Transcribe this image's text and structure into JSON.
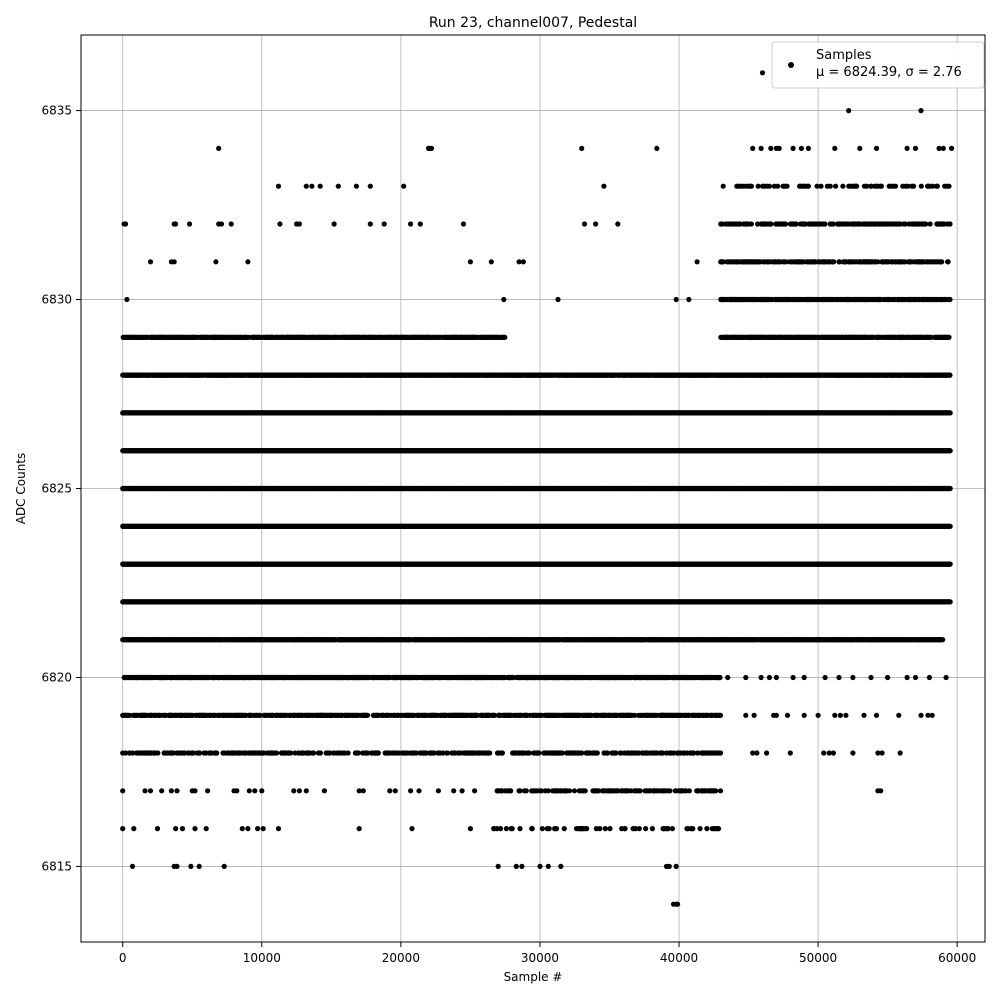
{
  "chart_data": {
    "type": "scatter",
    "title": "Run 23, channel007, Pedestal",
    "xlabel": "Sample #",
    "ylabel": "ADC Counts",
    "xlim": [
      -3000,
      62000
    ],
    "ylim": [
      6813,
      6837
    ],
    "xticks": [
      0,
      10000,
      20000,
      30000,
      40000,
      50000,
      60000
    ],
    "xtick_labels": [
      "0",
      "10000",
      "20000",
      "30000",
      "40000",
      "50000",
      "60000"
    ],
    "yticks": [
      6815,
      6820,
      6825,
      6830,
      6835
    ],
    "ytick_labels": [
      "6815",
      "6820",
      "6825",
      "6830",
      "6835"
    ],
    "grid": true,
    "legend": {
      "placement": "top-right",
      "entries": [
        {
          "marker": "dot",
          "line1": "Samples",
          "line2": "μ = 6824.39, σ = 2.76"
        }
      ]
    },
    "marker_color": "#000000",
    "series": [
      {
        "name": "Samples",
        "x_range": [
          0,
          59500
        ],
        "levels": [
          {
            "y": 6822,
            "ranges": [
              [
                0,
                59500
              ]
            ],
            "density": 1.0
          },
          {
            "y": 6823,
            "ranges": [
              [
                0,
                59500
              ]
            ],
            "density": 1.0
          },
          {
            "y": 6824,
            "ranges": [
              [
                0,
                59500
              ]
            ],
            "density": 1.0
          },
          {
            "y": 6825,
            "ranges": [
              [
                0,
                59500
              ]
            ],
            "density": 1.0
          },
          {
            "y": 6826,
            "ranges": [
              [
                0,
                59500
              ]
            ],
            "density": 1.0
          },
          {
            "y": 6827,
            "ranges": [
              [
                0,
                59500
              ]
            ],
            "density": 1.0
          },
          {
            "y": 6821,
            "ranges": [
              [
                0,
                43000
              ],
              [
                43000,
                59000
              ]
            ],
            "density": 0.9
          },
          {
            "y": 6828,
            "ranges": [
              [
                0,
                43000
              ],
              [
                43000,
                59500
              ]
            ],
            "density": 0.85
          },
          {
            "y": 6820,
            "ranges": [
              [
                0,
                43000
              ]
            ],
            "density": 0.7
          },
          {
            "y": 6829,
            "ranges": [
              [
                0,
                27500
              ],
              [
                43000,
                59500
              ]
            ],
            "density": 0.7
          },
          {
            "y": 6819,
            "ranges": [
              [
                0,
                43000
              ]
            ],
            "density": 0.5
          },
          {
            "y": 6830,
            "ranges": [
              [
                43000,
                59500
              ]
            ],
            "density": 0.6
          },
          {
            "y": 6818,
            "ranges": [
              [
                0,
                43000
              ]
            ],
            "density": 0.3
          },
          {
            "y": 6831,
            "ranges": [
              [
                43000,
                59500
              ]
            ],
            "density": 0.4
          },
          {
            "y": 6832,
            "ranges": [
              [
                43000,
                59500
              ]
            ],
            "density": 0.35
          },
          {
            "y": 6817,
            "ranges": [
              [
                26500,
                43000
              ]
            ],
            "density": 0.25
          },
          {
            "y": 6816,
            "ranges": [
              [
                26500,
                43000
              ]
            ],
            "density": 0.12
          },
          {
            "y": 6833,
            "ranges": [
              [
                43000,
                59500
              ]
            ],
            "density": 0.15
          }
        ],
        "points": [
          [
            100,
            6832
          ],
          [
            200,
            6832
          ],
          [
            300,
            6830
          ],
          [
            2000,
            6831
          ],
          [
            3500,
            6831
          ],
          [
            3700,
            6831
          ],
          [
            3700,
            6832
          ],
          [
            3800,
            6832
          ],
          [
            4800,
            6832
          ],
          [
            6700,
            6831
          ],
          [
            6900,
            6832
          ],
          [
            7100,
            6832
          ],
          [
            7800,
            6832
          ],
          [
            9000,
            6831
          ],
          [
            11300,
            6832
          ],
          [
            11200,
            6833
          ],
          [
            12500,
            6832
          ],
          [
            12700,
            6832
          ],
          [
            13200,
            6833
          ],
          [
            13600,
            6833
          ],
          [
            14200,
            6833
          ],
          [
            15200,
            6832
          ],
          [
            15500,
            6833
          ],
          [
            16800,
            6833
          ],
          [
            17800,
            6833
          ],
          [
            17800,
            6832
          ],
          [
            18800,
            6832
          ],
          [
            20200,
            6833
          ],
          [
            20700,
            6832
          ],
          [
            21400,
            6832
          ],
          [
            22000,
            6834
          ],
          [
            22200,
            6834
          ],
          [
            24500,
            6832
          ],
          [
            25000,
            6831
          ],
          [
            26500,
            6831
          ],
          [
            27400,
            6830
          ],
          [
            28500,
            6831
          ],
          [
            28800,
            6831
          ],
          [
            31300,
            6830
          ],
          [
            33000,
            6834
          ],
          [
            33200,
            6832
          ],
          [
            34000,
            6832
          ],
          [
            34600,
            6833
          ],
          [
            35600,
            6832
          ],
          [
            38400,
            6834
          ],
          [
            39800,
            6830
          ],
          [
            40700,
            6830
          ],
          [
            41300,
            6831
          ],
          [
            43000,
            6831
          ],
          [
            6900,
            6834
          ],
          [
            22000,
            6834
          ],
          [
            46000,
            6836
          ],
          [
            52200,
            6835
          ],
          [
            57400,
            6835
          ],
          [
            45300,
            6834
          ],
          [
            45900,
            6834
          ],
          [
            46600,
            6834
          ],
          [
            47000,
            6834
          ],
          [
            47200,
            6834
          ],
          [
            48200,
            6834
          ],
          [
            48800,
            6834
          ],
          [
            49300,
            6834
          ],
          [
            51200,
            6834
          ],
          [
            53000,
            6834
          ],
          [
            54200,
            6834
          ],
          [
            56400,
            6834
          ],
          [
            57000,
            6834
          ],
          [
            58700,
            6834
          ],
          [
            59000,
            6834
          ],
          [
            59600,
            6834
          ],
          [
            0,
            6817
          ],
          [
            1600,
            6817
          ],
          [
            2000,
            6817
          ],
          [
            2800,
            6817
          ],
          [
            3500,
            6817
          ],
          [
            3900,
            6817
          ],
          [
            5000,
            6817
          ],
          [
            5200,
            6817
          ],
          [
            6100,
            6817
          ],
          [
            8000,
            6817
          ],
          [
            8200,
            6817
          ],
          [
            9100,
            6817
          ],
          [
            9500,
            6817
          ],
          [
            10000,
            6817
          ],
          [
            12300,
            6817
          ],
          [
            12700,
            6817
          ],
          [
            13200,
            6817
          ],
          [
            14500,
            6817
          ],
          [
            17000,
            6817
          ],
          [
            17300,
            6817
          ],
          [
            19200,
            6817
          ],
          [
            19600,
            6817
          ],
          [
            20700,
            6817
          ],
          [
            21300,
            6817
          ],
          [
            22700,
            6817
          ],
          [
            23800,
            6817
          ],
          [
            24400,
            6817
          ],
          [
            25300,
            6817
          ],
          [
            0,
            6816
          ],
          [
            800,
            6816
          ],
          [
            2500,
            6816
          ],
          [
            3800,
            6816
          ],
          [
            4300,
            6816
          ],
          [
            5200,
            6816
          ],
          [
            6000,
            6816
          ],
          [
            8600,
            6816
          ],
          [
            9000,
            6816
          ],
          [
            9700,
            6816
          ],
          [
            10100,
            6816
          ],
          [
            11200,
            6816
          ],
          [
            17000,
            6816
          ],
          [
            20800,
            6816
          ],
          [
            25000,
            6816
          ],
          [
            33000,
            6816
          ],
          [
            34700,
            6816
          ],
          [
            36100,
            6816
          ],
          [
            36700,
            6816
          ],
          [
            700,
            6815
          ],
          [
            3700,
            6815
          ],
          [
            3900,
            6815
          ],
          [
            4900,
            6815
          ],
          [
            5500,
            6815
          ],
          [
            7300,
            6815
          ],
          [
            27000,
            6815
          ],
          [
            28300,
            6815
          ],
          [
            28700,
            6815
          ],
          [
            30000,
            6815
          ],
          [
            30600,
            6815
          ],
          [
            31500,
            6815
          ],
          [
            39100,
            6815
          ],
          [
            39300,
            6815
          ],
          [
            39800,
            6815
          ],
          [
            39600,
            6814
          ],
          [
            39800,
            6814
          ],
          [
            39900,
            6814
          ],
          [
            45300,
            6818
          ],
          [
            45600,
            6818
          ],
          [
            46300,
            6818
          ],
          [
            48000,
            6818
          ],
          [
            50400,
            6818
          ],
          [
            50800,
            6818
          ],
          [
            51100,
            6818
          ],
          [
            52500,
            6818
          ],
          [
            54300,
            6818
          ],
          [
            54600,
            6818
          ],
          [
            55900,
            6818
          ],
          [
            54300,
            6817
          ],
          [
            54500,
            6817
          ],
          [
            44800,
            6819
          ],
          [
            45400,
            6819
          ],
          [
            46800,
            6819
          ],
          [
            47000,
            6819
          ],
          [
            47800,
            6819
          ],
          [
            49000,
            6819
          ],
          [
            50000,
            6819
          ],
          [
            51200,
            6819
          ],
          [
            51600,
            6819
          ],
          [
            52000,
            6819
          ],
          [
            53300,
            6819
          ],
          [
            54200,
            6819
          ],
          [
            55800,
            6819
          ],
          [
            57400,
            6819
          ],
          [
            57900,
            6819
          ],
          [
            58200,
            6819
          ],
          [
            43500,
            6820
          ],
          [
            44800,
            6820
          ],
          [
            45900,
            6820
          ],
          [
            46500,
            6820
          ],
          [
            47000,
            6820
          ],
          [
            48200,
            6820
          ],
          [
            49000,
            6820
          ],
          [
            50500,
            6820
          ],
          [
            51500,
            6820
          ],
          [
            52500,
            6820
          ],
          [
            53800,
            6820
          ],
          [
            55000,
            6820
          ],
          [
            56400,
            6820
          ],
          [
            57000,
            6820
          ],
          [
            58000,
            6820
          ],
          [
            59200,
            6820
          ]
        ]
      }
    ]
  }
}
